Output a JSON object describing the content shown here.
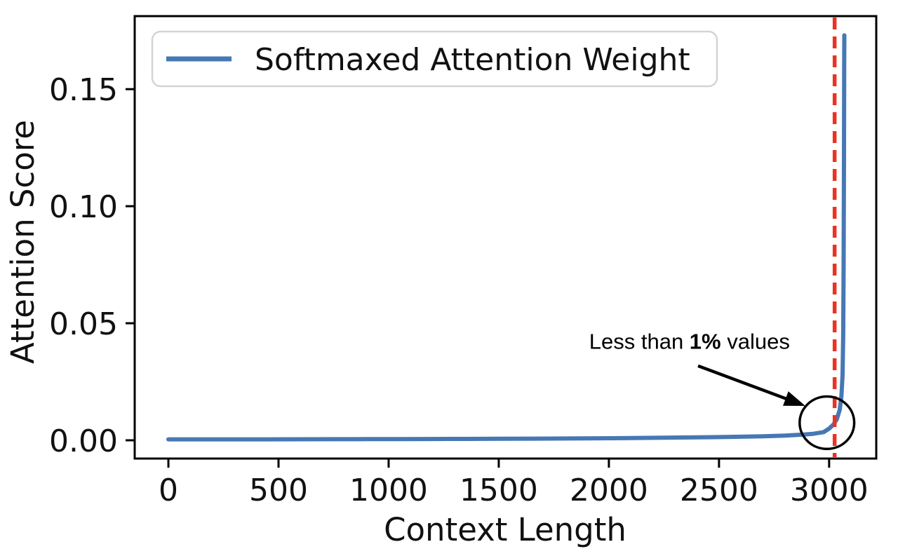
{
  "chart_data": {
    "type": "line",
    "title": "",
    "xlabel": "Context Length",
    "ylabel": "Attention Score",
    "xlim": [
      -153,
      3214
    ],
    "ylim": [
      -0.0078,
      0.1812
    ],
    "grid": false,
    "x_ticks": [
      0,
      500,
      1000,
      1500,
      2000,
      2500,
      3000
    ],
    "x_tick_labels": [
      "0",
      "500",
      "1000",
      "1500",
      "2000",
      "2500",
      "3000"
    ],
    "y_ticks": [
      0.0,
      0.05,
      0.1,
      0.15
    ],
    "y_tick_labels": [
      "0.00",
      "0.05",
      "0.10",
      "0.15"
    ],
    "legend": {
      "position": "upper left",
      "entries": [
        {
          "label": "Softmaxed Attention Weight",
          "color": "#4678b4"
        }
      ]
    },
    "series": [
      {
        "name": "Softmaxed Attention Weight",
        "color": "#4678b4",
        "points": [
          [
            0,
            0.0004
          ],
          [
            150,
            0.0004
          ],
          [
            300,
            0.0004
          ],
          [
            450,
            0.00042
          ],
          [
            600,
            0.00044
          ],
          [
            750,
            0.00046
          ],
          [
            900,
            0.0005
          ],
          [
            1050,
            0.00052
          ],
          [
            1200,
            0.00056
          ],
          [
            1350,
            0.0006
          ],
          [
            1500,
            0.00065
          ],
          [
            1650,
            0.0007
          ],
          [
            1800,
            0.00078
          ],
          [
            1950,
            0.00086
          ],
          [
            2100,
            0.00096
          ],
          [
            2250,
            0.0011
          ],
          [
            2400,
            0.00125
          ],
          [
            2550,
            0.00145
          ],
          [
            2700,
            0.0017
          ],
          [
            2800,
            0.002
          ],
          [
            2880,
            0.0024
          ],
          [
            2930,
            0.0028
          ],
          [
            2975,
            0.0035
          ],
          [
            3000,
            0.005
          ],
          [
            3020,
            0.0068
          ],
          [
            3035,
            0.009
          ],
          [
            3048,
            0.013
          ],
          [
            3056,
            0.019
          ],
          [
            3061,
            0.028
          ],
          [
            3064,
            0.045
          ],
          [
            3066,
            0.075
          ],
          [
            3067.5,
            0.12
          ],
          [
            3068.5,
            0.16
          ],
          [
            3069,
            0.173
          ]
        ],
        "peak": [
          3069,
          0.173
        ]
      }
    ],
    "vline": {
      "x": 3025,
      "color": "#ea3323",
      "style": "dashed"
    },
    "annotation": {
      "text": "Less than 1% values",
      "text_parts": {
        "prefix": "Less than ",
        "bold": "1%",
        "suffix": " values"
      },
      "text_pos": [
        2366,
        0.0423
      ],
      "arrow": {
        "from": [
          2405,
          0.0318
        ],
        "to": [
          2892,
          0.0147
        ]
      },
      "circle": {
        "center": [
          2990,
          0.0075
        ],
        "rx": 124,
        "ry": 0.0112
      }
    }
  }
}
